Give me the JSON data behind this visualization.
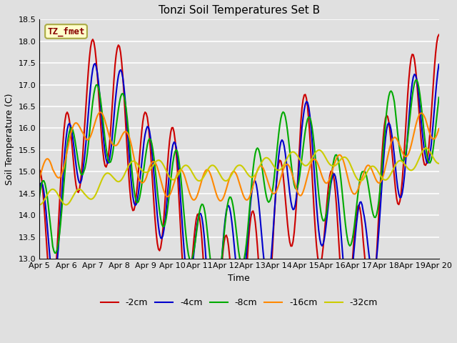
{
  "title": "Tonzi Soil Temperatures Set B",
  "xlabel": "Time",
  "ylabel": "Soil Temperature (C)",
  "ylim": [
    13.0,
    18.5
  ],
  "yticks": [
    13.0,
    13.5,
    14.0,
    14.5,
    15.0,
    15.5,
    16.0,
    16.5,
    17.0,
    17.5,
    18.0,
    18.5
  ],
  "xtick_labels": [
    "Apr 5",
    "Apr 6",
    "Apr 7",
    "Apr 8",
    "Apr 9",
    "Apr 10",
    "Apr 11",
    "Apr 12",
    "Apr 13",
    "Apr 14",
    "Apr 15",
    "Apr 16",
    "Apr 17",
    "Apr 18",
    "Apr 19",
    "Apr 20"
  ],
  "series_colors": [
    "#cc0000",
    "#0000cc",
    "#00aa00",
    "#ff8800",
    "#cccc00"
  ],
  "series_names": [
    "-2cm",
    "-4cm",
    "-8cm",
    "-16cm",
    "-32cm"
  ],
  "bg_color": "#e0e0e0",
  "plot_bg_color": "#e0e0e0",
  "legend_box_color": "#ffffcc",
  "legend_box_edge": "#aaaa44",
  "annotation_text": "TZ_fmet",
  "annotation_color": "#880000",
  "days": 15,
  "peaks_2cm": [
    15.05,
    18.0,
    18.15,
    16.35,
    15.97,
    13.2,
    13.8,
    14.5,
    17.05,
    15.0,
    14.1,
    17.1,
    18.15
  ],
  "peaks_4cm": [
    14.75,
    17.4,
    17.65,
    16.07,
    15.65,
    13.55,
    14.6,
    15.0,
    17.0,
    15.0,
    14.25,
    16.6,
    17.6
  ],
  "peaks_8cm": [
    14.8,
    16.9,
    17.15,
    15.8,
    15.5,
    14.0,
    14.6,
    16.25,
    16.55,
    15.45,
    15.0,
    17.15,
    17.1
  ],
  "peaks_16cm": [
    15.3,
    16.45,
    16.3,
    15.3,
    15.05,
    15.05,
    15.0,
    15.2,
    15.15,
    15.5,
    15.05,
    15.8,
    16.45
  ],
  "peaks_32cm": [
    14.6,
    14.6,
    15.1,
    15.35,
    15.15,
    15.15,
    15.15,
    15.35,
    15.5,
    15.5,
    15.1,
    15.2,
    15.55
  ]
}
